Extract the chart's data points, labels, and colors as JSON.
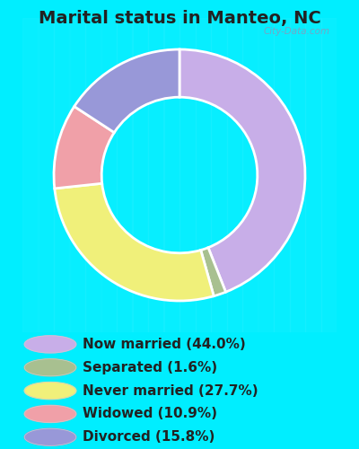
{
  "title": "Marital status in Manteo, NC",
  "categories": [
    "Now married",
    "Separated",
    "Never married",
    "Widowed",
    "Divorced"
  ],
  "values": [
    44.0,
    1.6,
    27.7,
    10.9,
    15.8
  ],
  "colors": [
    "#c8aee8",
    "#a8c090",
    "#f0f07a",
    "#f0a0a8",
    "#9898d8"
  ],
  "legend_colors": [
    "#c8aee8",
    "#a8c090",
    "#f0f07a",
    "#f0a0a8",
    "#9898d8"
  ],
  "background_cyan": "#00eeff",
  "chart_bg": "#ddeedd",
  "title_color": "#222222",
  "title_fontsize": 14,
  "legend_fontsize": 11,
  "legend_text_color": "#222222",
  "watermark": "City-Data.com",
  "legend_labels": [
    "Now married (44.0%)",
    "Separated (1.6%)",
    "Never married (27.7%)",
    "Widowed (10.9%)",
    "Divorced (15.8%)"
  ]
}
